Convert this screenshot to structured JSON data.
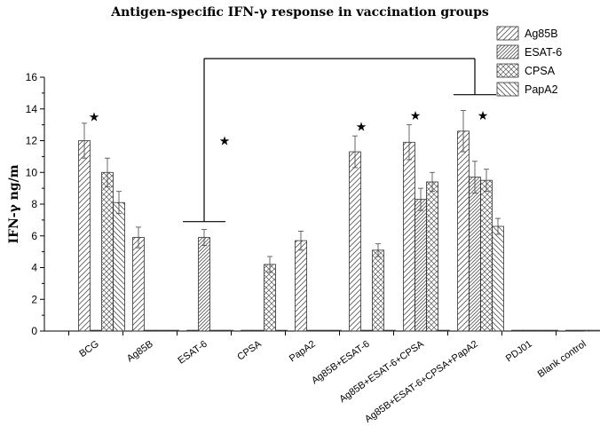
{
  "chart_data": {
    "type": "bar",
    "title": "Antigen-specific IFN-γ response in vaccination groups",
    "xlabel": "",
    "ylabel": "IFN-γ ng/m",
    "ylim": [
      0,
      16
    ],
    "yticks": [
      "0",
      "2",
      "4",
      "6",
      "8",
      "10",
      "12",
      "14",
      "16"
    ],
    "categories": [
      "BCG",
      "Ag85B",
      "ESAT-6",
      "CPSA",
      "PapA2",
      "Ag85B+ESAT-6",
      "Ag85B+ESAT-6+CPSA",
      "Ag85B+ESAT-6+CPSA+PapA2",
      "PDJ01",
      "Blank control"
    ],
    "series": [
      {
        "name": "Ag85B",
        "pattern": "diag-up",
        "values": [
          12.0,
          5.9,
          0.05,
          0.05,
          5.7,
          11.3,
          11.9,
          12.6,
          0.05,
          0.05
        ],
        "errors": [
          1.1,
          0.65,
          0.05,
          0.05,
          0.6,
          1.0,
          1.1,
          1.3,
          0.05,
          0.05
        ]
      },
      {
        "name": "ESAT-6",
        "pattern": "diag-up-dense",
        "values": [
          0.05,
          0.05,
          5.9,
          0.05,
          0.05,
          0.05,
          8.3,
          9.7,
          0.05,
          0.05
        ],
        "errors": [
          0.05,
          0.05,
          0.5,
          0.05,
          0.05,
          0.05,
          0.7,
          1.0,
          0.05,
          0.05
        ]
      },
      {
        "name": "CPSA",
        "pattern": "cross",
        "values": [
          10.0,
          0.05,
          0.05,
          4.2,
          0.05,
          5.1,
          9.4,
          9.5,
          0.05,
          0.05
        ],
        "errors": [
          0.9,
          0.05,
          0.05,
          0.5,
          0.05,
          0.4,
          0.6,
          0.7,
          0.05,
          0.05
        ]
      },
      {
        "name": "PapA2",
        "pattern": "diag-down",
        "values": [
          8.1,
          0.05,
          0.05,
          0.05,
          0.05,
          0.05,
          0.05,
          6.6,
          0.05,
          0.05
        ],
        "errors": [
          0.7,
          0.05,
          0.05,
          0.05,
          0.05,
          0.05,
          0.05,
          0.5,
          0.05,
          0.05
        ]
      }
    ],
    "significance_markers": [
      "★",
      "★",
      "★",
      "★",
      "★"
    ],
    "legend_position": "top-right",
    "grid": false
  }
}
